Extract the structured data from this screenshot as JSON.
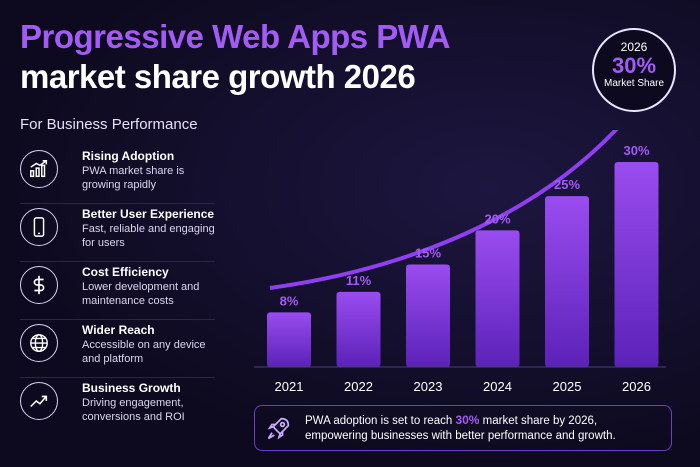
{
  "header": {
    "title_line1": "Progressive Web Apps PWA",
    "title_line2": "market share growth 2026",
    "subtitle": "For Business Performance"
  },
  "features": [
    {
      "icon": "chart-growth-icon",
      "title": "Rising Adoption",
      "desc": "PWA market share is growing rapidly"
    },
    {
      "icon": "smartphone-icon",
      "title": "Better User Experience",
      "desc": "Fast, reliable and engaging for users"
    },
    {
      "icon": "dollar-icon",
      "title": "Cost Efficiency",
      "desc": "Lower development and maintenance costs"
    },
    {
      "icon": "globe-icon",
      "title": "Wider Reach",
      "desc": "Accessible on any device and platform"
    },
    {
      "icon": "trend-arrow-icon",
      "title": "Business Growth",
      "desc": "Driving engagement, conversions and ROI"
    }
  ],
  "badge": {
    "year": "2026",
    "value": "30%",
    "label": "Market Share"
  },
  "bottom_banner": {
    "pre": "PWA adoption is set to reach ",
    "highlight": "30%",
    "post": " market share by 2026,",
    "line2": "empowering businesses with better performance and growth."
  },
  "chart_data": {
    "type": "bar",
    "categories": [
      "2021",
      "2022",
      "2023",
      "2024",
      "2025",
      "2026"
    ],
    "values": [
      8,
      11,
      15,
      20,
      25,
      30
    ],
    "data_labels": [
      "8%",
      "11%",
      "15%",
      "20%",
      "25%",
      "30%"
    ],
    "ylim": [
      0,
      30
    ],
    "grid": false,
    "legend": "none",
    "colors": {
      "bar_top": "#9a4cf0",
      "bar_bottom": "#5b22b8",
      "label": "#a35bf5",
      "trend_arrow": "#8f3ff0"
    }
  }
}
